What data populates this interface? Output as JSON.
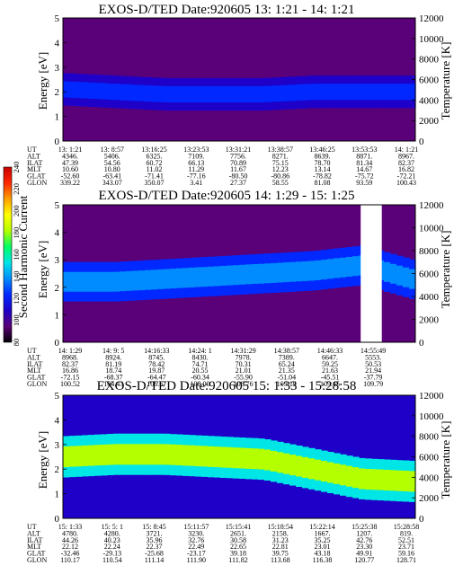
{
  "chart_data": [
    {
      "type": "heatmap",
      "title": "EXOS-D/TED Date:920605 13: 1:21 - 14: 1:21",
      "ylabel": "Energy [eV]",
      "y2label": "Temperature [K]",
      "ylim": [
        0,
        5
      ],
      "y2lim": [
        0,
        12000
      ],
      "yticks": [
        "0",
        "1",
        "2",
        "3",
        "4",
        "5"
      ],
      "y2ticks": [
        "0",
        "2000",
        "4000",
        "6000",
        "8000",
        "10000",
        "12000"
      ],
      "background_level": 100,
      "band": {
        "center_ev": [
          2.1,
          2.0,
          1.9,
          1.9,
          1.9,
          2.0,
          2.0,
          2.0
        ],
        "width_ev": 1.1,
        "level": 125
      },
      "gaps": [],
      "ephemeris": {
        "rows": [
          "UT",
          "ALT",
          "ILAT",
          "MLT",
          "GLAT",
          "GLON"
        ],
        "columns": [
          [
            "13: 1:21",
            "4346.",
            "47.39",
            "10.60",
            "-52.60",
            "339.22"
          ],
          [
            "13: 8:57",
            "5406.",
            "54.56",
            "10.80",
            "-63.41",
            "343.07"
          ],
          [
            "13:16:25",
            "6325.",
            "60.72",
            "11.02",
            "-71.41",
            "350.07"
          ],
          [
            "13:23:53",
            "7109.",
            "66.13",
            "11.29",
            "-77.16",
            "3.41"
          ],
          [
            "13:31:21",
            "7756.",
            "70.89",
            "11.67",
            "-80.50",
            "27.37"
          ],
          [
            "13:38:57",
            "8271.",
            "75.15",
            "12.23",
            "-80.86",
            "58.55"
          ],
          [
            "13:46:25",
            "8639.",
            "78.70",
            "13.14",
            "-78.82",
            "81.08"
          ],
          [
            "13:53:53",
            "8871.",
            "81.34",
            "14.67",
            "-75.72",
            "93.59"
          ],
          [
            "14: 1:21",
            "8967.",
            "82.37",
            "16.82",
            "-72.21",
            "100.43"
          ]
        ]
      }
    },
    {
      "type": "heatmap",
      "title": "EXOS-D/TED Date:920605 14: 1:29 - 15: 1:25",
      "ylabel": "Energy [eV]",
      "y2label": "Temperature [K]",
      "ylim": [
        0,
        5
      ],
      "y2lim": [
        0,
        12000
      ],
      "yticks": [
        "0",
        "1",
        "2",
        "3",
        "4",
        "5"
      ],
      "y2ticks": [
        "0",
        "2000",
        "4000",
        "6000",
        "8000",
        "10000",
        "12000"
      ],
      "background_level": 100,
      "band": {
        "center_ev": [
          2.2,
          2.2,
          2.3,
          2.4,
          2.5,
          2.6,
          2.8,
          2.3
        ],
        "width_ev": 1.2,
        "level": 135
      },
      "gaps": [
        [
          0.845,
          0.905
        ]
      ],
      "ephemeris": {
        "rows": [
          "UT",
          "ALT",
          "ILAT",
          "MLT",
          "GLAT",
          "GLON"
        ],
        "columns": [
          [
            "14: 1:29",
            "8968.",
            "82.37",
            "16.86",
            "-72.15",
            "100.52"
          ],
          [
            "14: 9: 5",
            "8924.",
            "81.19",
            "18.74",
            "-68.37",
            "104.43"
          ],
          [
            "14:16:33",
            "8745.",
            "78.42",
            "19.87",
            "-64.47",
            "106.67"
          ],
          [
            "14:24: 1",
            "8430.",
            "74.71",
            "20.55",
            "-60.34",
            "108.00"
          ],
          [
            "14:31:29",
            "7978.",
            "70.31",
            "21.01",
            "-55.90",
            "108.76"
          ],
          [
            "14:38:57",
            "7389.",
            "65.24",
            "21.35",
            "-51.04",
            "109.19"
          ],
          [
            "14:46:33",
            "6647.",
            "59.25",
            "21.63",
            "-45.51",
            "109.45"
          ],
          [
            "14:55:49",
            "5553.",
            "50.53",
            "21.94",
            "-37.79",
            "109.79"
          ]
        ]
      }
    },
    {
      "type": "heatmap",
      "title": "EXOS-D/TED Date:920605 15: 1:33 - 15:28:58",
      "ylabel": "Energy [eV]",
      "y2label": "Temperature [K]",
      "ylim": [
        0,
        5
      ],
      "y2lim": [
        0,
        12000
      ],
      "yticks": [
        "0",
        "1",
        "2",
        "3",
        "4",
        "5"
      ],
      "y2ticks": [
        "0",
        "2000",
        "4000",
        "6000",
        "8000",
        "10000",
        "12000"
      ],
      "background_level": 110,
      "band": {
        "center_ev": [
          2.5,
          2.6,
          2.6,
          2.5,
          2.4,
          2.0,
          1.6,
          1.5
        ],
        "width_ev": 1.4,
        "level": 185
      },
      "gaps": [],
      "ephemeris": {
        "rows": [
          "UT",
          "ALT",
          "ILAT",
          "MLT",
          "GLAT",
          "GLON"
        ],
        "columns": [
          [
            "15: 1:33",
            "4780.",
            "44.26",
            "22.12",
            "-32.46",
            "110.17"
          ],
          [
            "15: 5: 1",
            "4280.",
            "40.23",
            "22.24",
            "-29.13",
            "110.54"
          ],
          [
            "15: 8:45",
            "3721.",
            "35.96",
            "22.37",
            "-25.68",
            "111.14"
          ],
          [
            "15:11:57",
            "3230.",
            "32.76",
            "22.49",
            "-23.17",
            "111.90"
          ],
          [
            "15:15:41",
            "2651.",
            "30.58",
            "22.65",
            "39.18",
            "111.82"
          ],
          [
            "15:18:54",
            "2158.",
            "31.23",
            "22.81",
            "39.75",
            "113.68"
          ],
          [
            "15:22:14",
            "1667.",
            "35.25",
            "23.01",
            "43.18",
            "116.38"
          ],
          [
            "15:25:38",
            "1207.",
            "42.76",
            "23.30",
            "49.91",
            "120.77"
          ],
          [
            "15:28:58",
            "819.",
            "52.51",
            "23.71",
            "59.16",
            "128.71"
          ]
        ]
      }
    }
  ],
  "colorbar": {
    "label": "Second Harmonic Current",
    "ticks": [
      "80",
      "100",
      "120",
      "140",
      "160",
      "180",
      "200",
      "220",
      "240"
    ],
    "min": 80,
    "max": 240,
    "colors": [
      "#000000",
      "#5a0078",
      "#1e00c8",
      "#0028ff",
      "#008cff",
      "#00e6e6",
      "#00ff64",
      "#b4ff00",
      "#ffff00",
      "#ffa000",
      "#ff2800",
      "#c80000"
    ]
  }
}
